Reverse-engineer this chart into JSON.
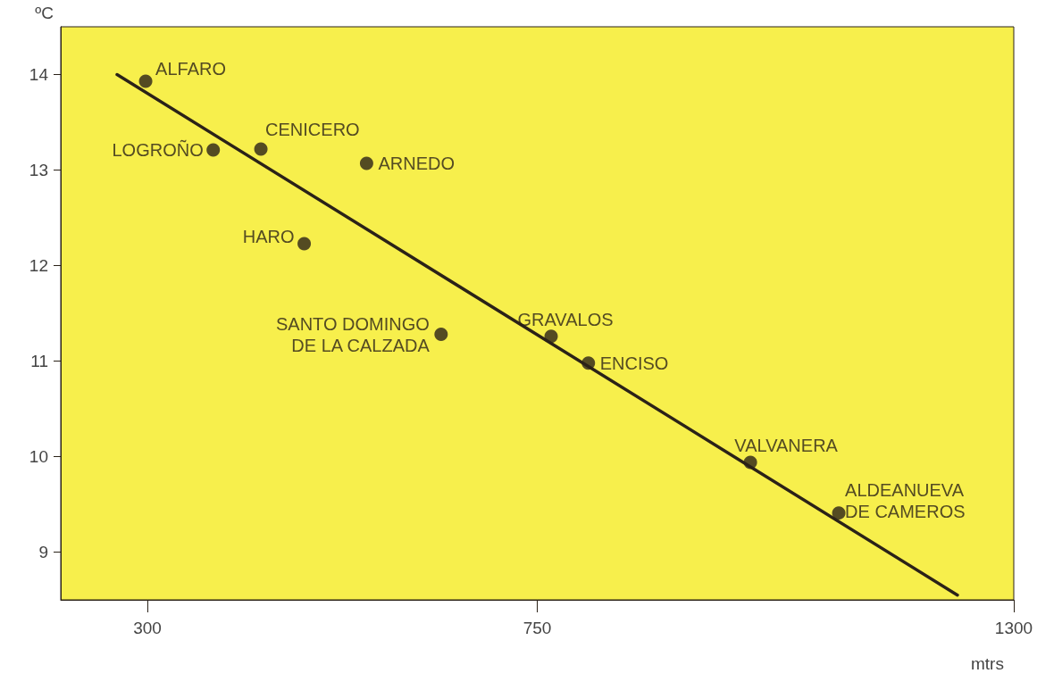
{
  "chart_data": {
    "type": "scatter",
    "xlabel": "mtrs",
    "ylabel": "ºC",
    "xlim": [
      200,
      1300
    ],
    "xticks": [
      300,
      750,
      1300
    ],
    "ylim": [
      8.5,
      14.5
    ],
    "yticks": [
      9,
      10,
      11,
      12,
      13,
      14
    ],
    "grid": false,
    "series": [
      {
        "marker": "circle",
        "color": "#2b2218",
        "x": [
          298,
          376,
          431,
          481,
          553,
          639,
          766,
          809,
          996,
          1098
        ],
        "values": [
          13.93,
          13.21,
          13.22,
          12.23,
          13.07,
          11.28,
          11.26,
          10.98,
          9.94,
          9.41
        ]
      },
      {
        "type": "line",
        "color": "#2b2218",
        "x": [
          265,
          1235
        ],
        "values": [
          14.0,
          8.55
        ]
      }
    ],
    "annotations": [
      {
        "text": "ALFARO",
        "x": 298,
        "y": 13.93
      },
      {
        "text": "LOGROÑO",
        "x": 376,
        "y": 13.21
      },
      {
        "text": "CENICERO",
        "x": 431,
        "y": 13.22
      },
      {
        "text": "HARO",
        "x": 481,
        "y": 12.23
      },
      {
        "text": "ARNEDO",
        "x": 553,
        "y": 13.07
      },
      {
        "text": "SANTO DOMINGO\nDE LA CALZADA",
        "x": 639,
        "y": 11.28
      },
      {
        "text": "GRAVALOS",
        "x": 766,
        "y": 11.26
      },
      {
        "text": "ENCISO",
        "x": 809,
        "y": 10.98
      },
      {
        "text": "VALVANERA",
        "x": 996,
        "y": 9.94
      },
      {
        "text": "ALDEANUEVA\nDE CAMEROS",
        "x": 1098,
        "y": 9.41
      }
    ]
  }
}
